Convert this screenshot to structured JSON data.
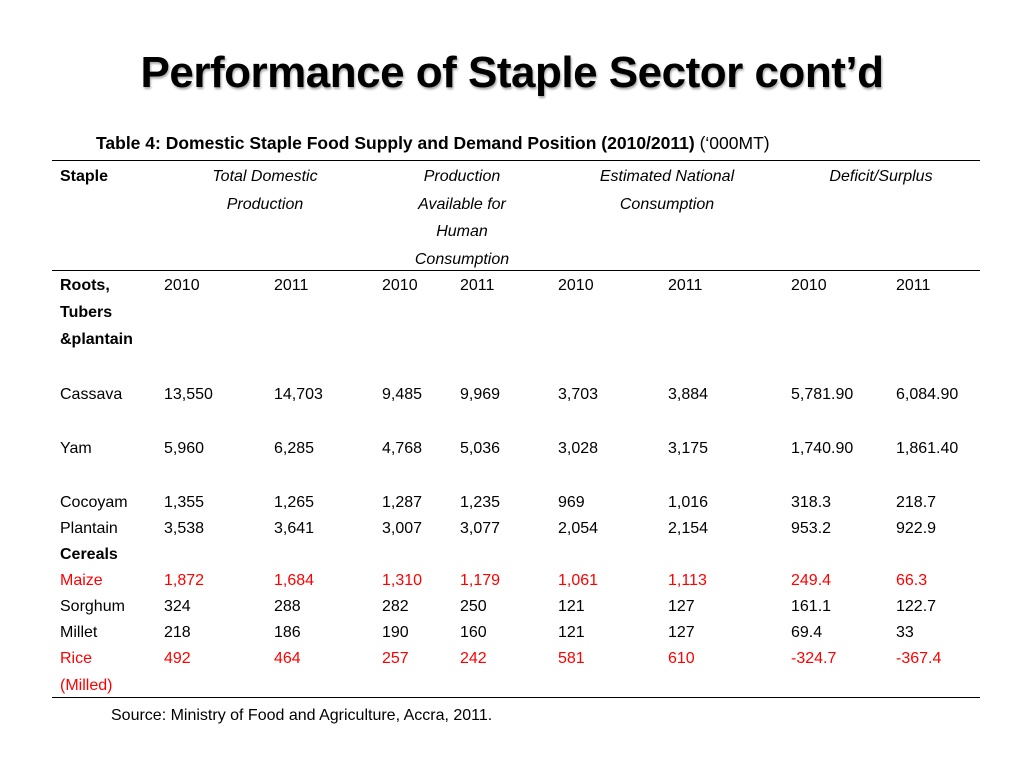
{
  "title": "Performance of Staple Sector cont’d",
  "caption": {
    "bold": "Table 4: Domestic Staple Food Supply and Demand Position (2010/2011)",
    "unit": "(‘000MT)"
  },
  "headers": {
    "staple": "Staple",
    "total_domestic": [
      "Total Domestic",
      "Production"
    ],
    "available": [
      "Production",
      "Available for",
      "Human",
      "Consumption"
    ],
    "national": [
      "Estimated National",
      "Consumption"
    ],
    "deficit": [
      "Deficit/Surplus"
    ]
  },
  "groups": {
    "roots": [
      "Roots,",
      "Tubers",
      "&plantain"
    ],
    "years": [
      "2010",
      "2011",
      "2010",
      "2011",
      "2010",
      "2011",
      "2010",
      "2011"
    ],
    "cereals": "Cereals"
  },
  "rows": [
    {
      "name": "Cassava",
      "values": [
        "13,550",
        "14,703",
        "9,485",
        "9,969",
        "3,703",
        "3,884",
        "5,781.90",
        "6,084.90"
      ]
    },
    {
      "name": "Yam",
      "values": [
        "5,960",
        "6,285",
        "4,768",
        "5,036",
        "3,028",
        "3,175",
        "1,740.90",
        "1,861.40"
      ]
    },
    {
      "name": "Cocoyam",
      "values": [
        "1,355",
        "1,265",
        "1,287",
        "1,235",
        "969",
        "1,016",
        "318.3",
        "218.7"
      ]
    },
    {
      "name": "Plantain",
      "values": [
        "3,538",
        "3,641",
        "3,007",
        "3,077",
        "2,054",
        "2,154",
        "953.2",
        "922.9"
      ]
    },
    {
      "name": "Maize",
      "values": [
        "1,872",
        "1,684",
        "1,310",
        "1,179",
        "1,061",
        "1,113",
        "249.4",
        "66.3"
      ]
    },
    {
      "name": "Sorghum",
      "values": [
        "324",
        "288",
        "282",
        "250",
        "121",
        "127",
        "161.1",
        "122.7"
      ]
    },
    {
      "name": "Millet",
      "values": [
        "218",
        "186",
        "190",
        "160",
        "121",
        "127",
        "69.4",
        "33"
      ]
    },
    {
      "name": "Rice",
      "name2": "(Milled)",
      "values": [
        "492",
        "464",
        "257",
        "242",
        "581",
        "610",
        "-324.7",
        "-367.4"
      ]
    }
  ],
  "source": "Source: Ministry of Food and Agriculture, Accra, 2011.",
  "colors": {
    "highlight": "#ff0000",
    "text": "#000000"
  }
}
